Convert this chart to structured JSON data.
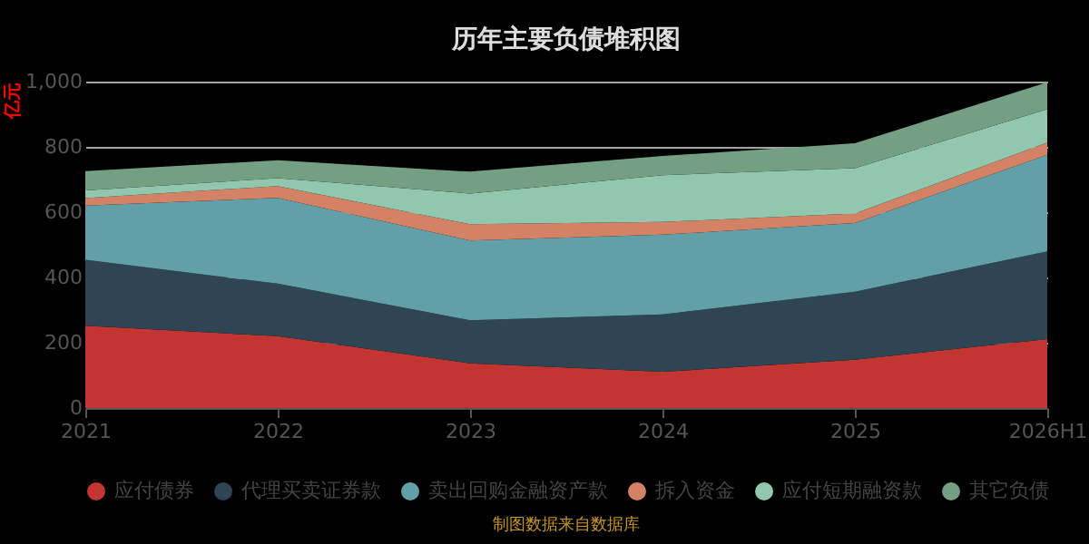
{
  "chart_data": {
    "type": "area",
    "title": "历年主要负债堆积图",
    "ylabel": "亿元",
    "categories": [
      "2021",
      "2022",
      "2023",
      "2024",
      "2025",
      "2026H1"
    ],
    "stacked": true,
    "ylim": [
      0,
      1000
    ],
    "yticks": [
      0,
      200,
      400,
      600,
      800,
      {
        "value": 1000,
        "label": "1,000"
      }
    ],
    "grid": "y",
    "legend": "bottom",
    "series": [
      {
        "name": "应付债券",
        "color": "#c23531",
        "values": [
          252,
          220,
          137,
          111,
          148,
          211
        ]
      },
      {
        "name": "代理买卖证券款",
        "color": "#2f4554",
        "values": [
          202,
          161,
          132,
          176,
          208,
          269
        ]
      },
      {
        "name": "卖出回购金融资产款",
        "color": "#61a0a8",
        "values": [
          166,
          263,
          244,
          244,
          211,
          296
        ]
      },
      {
        "name": "拆入资金",
        "color": "#d48265",
        "values": [
          23,
          36,
          50,
          39,
          29,
          37
        ]
      },
      {
        "name": "应付短期融资款",
        "color": "#91c7ae",
        "values": [
          24,
          24,
          94,
          143,
          139,
          102
        ]
      },
      {
        "name": "其它负债",
        "color": "#749f83",
        "values": [
          59,
          55,
          67,
          59,
          76,
          83
        ]
      }
    ],
    "annotations": [
      "制图数据来自数据库"
    ]
  }
}
